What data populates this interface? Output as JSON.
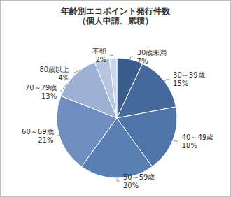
{
  "chart_data": {
    "type": "pie",
    "title": "年齢別エコポイント発行件数",
    "subtitle": "（個人申請、累積）",
    "categories": [
      "30歳未満",
      "30～39歳",
      "40～49歳",
      "50～59歳",
      "60～69歳",
      "70～79歳",
      "80歳以上",
      "不明"
    ],
    "values": [
      7,
      15,
      18,
      20,
      21,
      13,
      4,
      2
    ],
    "value_labels": [
      "7%",
      "15%",
      "18%",
      "20%",
      "21%",
      "13%",
      "4%",
      "2%"
    ],
    "colors": [
      "#3b5d8c",
      "#46699b",
      "#4f74a8",
      "#5a7fb3",
      "#6f8fc0",
      "#9cb1d4",
      "#b6c5e1",
      "#cbd5e9"
    ],
    "data_labels": true
  }
}
